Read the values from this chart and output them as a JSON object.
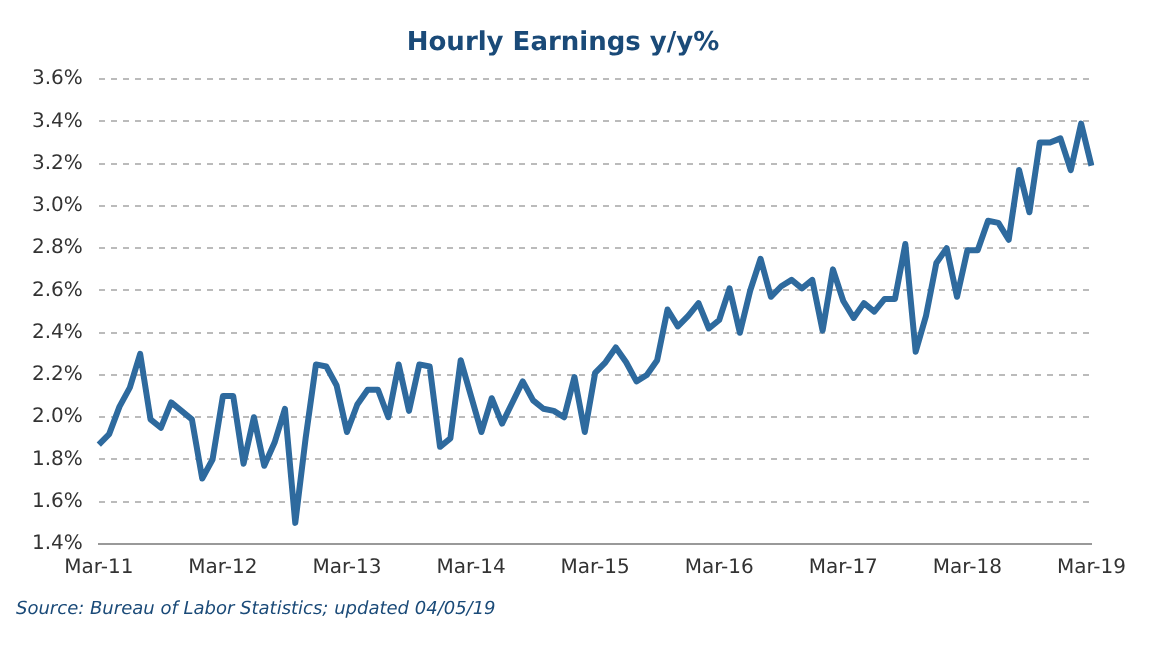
{
  "chart_data": {
    "type": "line",
    "title": "Hourly Earnings y/y%",
    "categories": [
      "Mar-11",
      null,
      null,
      null,
      null,
      null,
      null,
      null,
      null,
      null,
      null,
      null,
      "Mar-12",
      null,
      null,
      null,
      null,
      null,
      null,
      null,
      null,
      null,
      null,
      null,
      "Mar-13",
      null,
      null,
      null,
      null,
      null,
      null,
      null,
      null,
      null,
      null,
      null,
      "Mar-14",
      null,
      null,
      null,
      null,
      null,
      null,
      null,
      null,
      null,
      null,
      null,
      "Mar-15",
      null,
      null,
      null,
      null,
      null,
      null,
      null,
      null,
      null,
      null,
      null,
      "Mar-16",
      null,
      null,
      null,
      null,
      null,
      null,
      null,
      null,
      null,
      null,
      null,
      "Mar-17",
      null,
      null,
      null,
      null,
      null,
      null,
      null,
      null,
      null,
      null,
      null,
      "Mar-18",
      null,
      null,
      null,
      null,
      null,
      null,
      null,
      null,
      null,
      null,
      null,
      "Mar-19"
    ],
    "series": [
      {
        "color": "#2e6a9e",
        "values": [
          1.87,
          1.92,
          2.05,
          2.14,
          2.3,
          1.99,
          1.95,
          2.07,
          2.03,
          1.99,
          1.71,
          1.8,
          2.1,
          2.1,
          1.78,
          2.0,
          1.77,
          1.88,
          2.04,
          1.5,
          1.9,
          2.25,
          2.24,
          2.15,
          1.93,
          2.06,
          2.13,
          2.13,
          2.0,
          2.25,
          2.03,
          2.25,
          2.24,
          1.86,
          1.9,
          2.27,
          2.1,
          1.93,
          2.09,
          1.97,
          2.07,
          2.17,
          2.08,
          2.04,
          2.03,
          2.0,
          2.19,
          1.93,
          2.21,
          2.26,
          2.33,
          2.26,
          2.17,
          2.2,
          2.27,
          2.51,
          2.43,
          2.48,
          2.54,
          2.42,
          2.46,
          2.61,
          2.4,
          2.6,
          2.75,
          2.57,
          2.62,
          2.65,
          2.61,
          2.65,
          2.41,
          2.7,
          2.55,
          2.47,
          2.54,
          2.5,
          2.56,
          2.56,
          2.82,
          2.31,
          2.48,
          2.73,
          2.8,
          2.57,
          2.79,
          2.79,
          2.93,
          2.92,
          2.84,
          3.17,
          2.97,
          3.3,
          3.3,
          3.32,
          3.17,
          3.39,
          3.19
        ]
      }
    ],
    "ylim": [
      1.4,
      3.6
    ],
    "yticks": [
      {
        "value": 1.4,
        "label": "1.4%"
      },
      {
        "value": 1.6,
        "label": "1.6%"
      },
      {
        "value": 1.8,
        "label": "1.8%"
      },
      {
        "value": 2.0,
        "label": "2.0%"
      },
      {
        "value": 2.2,
        "label": "2.2%"
      },
      {
        "value": 2.4,
        "label": "2.4%"
      },
      {
        "value": 2.6,
        "label": "2.6%"
      },
      {
        "value": 2.8,
        "label": "2.8%"
      },
      {
        "value": 3.0,
        "label": "3.0%"
      },
      {
        "value": 3.2,
        "label": "3.2%"
      },
      {
        "value": 3.4,
        "label": "3.4%"
      },
      {
        "value": 3.6,
        "label": "3.6%"
      }
    ],
    "grid": "y",
    "legend": false,
    "marker": "none",
    "line_style": "solid",
    "annotations": [
      "Source: Bureau of Labor Statistics; updated 04/05/19"
    ]
  }
}
